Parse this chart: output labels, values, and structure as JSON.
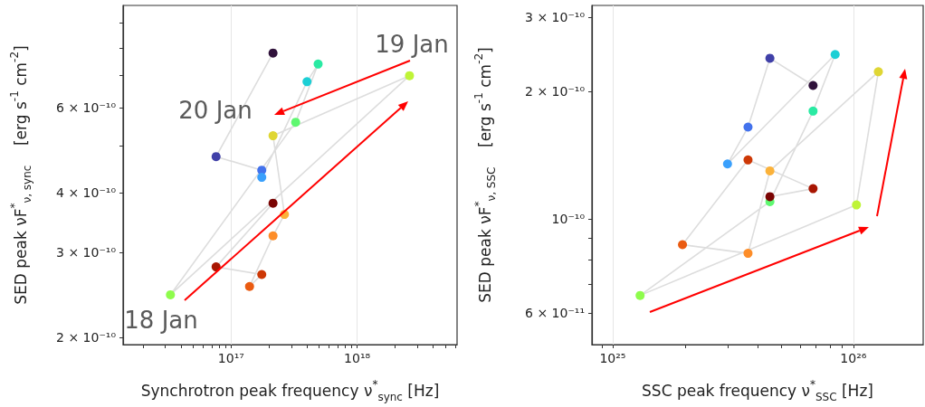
{
  "chart_data": [
    {
      "type": "line",
      "xlabel": "Synchrotron peak frequency ν$^{*}$$_{sync}$ [Hz]",
      "ylabel": "SED peak νF$^{*}$$_{ν, sync}$    [erg s$^{-1}$ cm$^{-2}$]",
      "log": "xy",
      "grid": "x",
      "marker": "circle",
      "line_style": "solid",
      "xlim": [
        1.39e+16,
        6.2e+18
      ],
      "ylim": [
        1.93e-10,
        9.8e-10
      ],
      "xticks": [
        {
          "value": 2e+16,
          "label": null
        },
        {
          "value": 3e+16,
          "label": null
        },
        {
          "value": 4e+16,
          "label": null
        },
        {
          "value": 5e+16,
          "label": null
        },
        {
          "value": 6e+16,
          "label": null
        },
        {
          "value": 7e+16,
          "label": null
        },
        {
          "value": 8e+16,
          "label": null
        },
        {
          "value": 9e+16,
          "label": null
        },
        {
          "value": 1e+17,
          "label": "10¹⁷"
        },
        {
          "value": 2e+17,
          "label": null
        },
        {
          "value": 3e+17,
          "label": null
        },
        {
          "value": 4e+17,
          "label": null
        },
        {
          "value": 5e+17,
          "label": null
        },
        {
          "value": 6e+17,
          "label": null
        },
        {
          "value": 7e+17,
          "label": null
        },
        {
          "value": 8e+17,
          "label": null
        },
        {
          "value": 9e+17,
          "label": null
        },
        {
          "value": 1e+18,
          "label": "10¹⁸"
        },
        {
          "value": 2e+18,
          "label": null
        },
        {
          "value": 3e+18,
          "label": null
        },
        {
          "value": 4e+18,
          "label": null
        },
        {
          "value": 5e+18,
          "label": null
        },
        {
          "value": 6e+18,
          "label": null
        }
      ],
      "yticks": [
        {
          "value": 2e-10,
          "label": "2 × 10⁻¹⁰"
        },
        {
          "value": 3e-10,
          "label": "3 × 10⁻¹⁰"
        },
        {
          "value": 4e-10,
          "label": "4 × 10⁻¹⁰"
        },
        {
          "value": 5e-10,
          "label": null
        },
        {
          "value": 6e-10,
          "label": "6 × 10⁻¹⁰"
        },
        {
          "value": 7e-10,
          "label": null
        },
        {
          "value": 8e-10,
          "label": null
        },
        {
          "value": 9e-10,
          "label": null
        }
      ],
      "x": [
        2.15e+17,
        7.6e+16,
        1.75e+17,
        1.75e+17,
        4e+17,
        4.9e+17,
        3.25e+17,
        3.3e+16,
        2.6e+18,
        2.15e+17,
        2.65e+17,
        2.15e+17,
        1.4e+17,
        1.75e+17,
        7.6e+16,
        2.15e+17
      ],
      "series": [
        {
          "color": "#dddddd",
          "values": [
            7.8e-10,
            4.75e-10,
            4.45e-10,
            4.3e-10,
            6.8e-10,
            7.4e-10,
            5.6e-10,
            2.45e-10,
            7e-10,
            5.25e-10,
            3.6e-10,
            3.25e-10,
            2.55e-10,
            2.7e-10,
            2.8e-10,
            3.8e-10
          ],
          "colors": [
            "#30123b",
            "#4040a8",
            "#4372ec",
            "#3aa0fc",
            "#1ccfd5",
            "#2aeaa3",
            "#5ef870",
            "#8efc4c",
            "#bff437",
            "#dfd634",
            "#fbb23a",
            "#fd8d28",
            "#ea5b11",
            "#cd3806",
            "#a81602",
            "#7a0403"
          ]
        }
      ],
      "annotations": [
        "18 Jan",
        "19 Jan",
        "20 Jan"
      ]
    },
    {
      "type": "line",
      "xlabel": "SSC peak frequency ν$^{*}$$_{SSC}$ [Hz]",
      "ylabel": "SED peak νF$^{*}$$_{ν, SSC}$    [erg s$^{-1}$ cm$^{-2}$]",
      "log": "xy",
      "grid": "x",
      "marker": "circle",
      "line_style": "solid",
      "xlim": [
        8.2e+24,
        1.95e+26
      ],
      "ylim": [
        5.05e-11,
        3.2e-10
      ],
      "xticks": [
        {
          "value": 9e+24,
          "label": null
        },
        {
          "value": 1e+25,
          "label": "10²⁵"
        },
        {
          "value": 2e+25,
          "label": null
        },
        {
          "value": 3e+25,
          "label": null
        },
        {
          "value": 4e+25,
          "label": null
        },
        {
          "value": 5e+25,
          "label": null
        },
        {
          "value": 6e+25,
          "label": null
        },
        {
          "value": 7e+25,
          "label": null
        },
        {
          "value": 8e+25,
          "label": null
        },
        {
          "value": 9e+25,
          "label": null
        },
        {
          "value": 1e+26,
          "label": "10²⁶"
        }
      ],
      "yticks": [
        {
          "value": 6e-11,
          "label": "6 × 10⁻¹¹"
        },
        {
          "value": 7e-11,
          "label": null
        },
        {
          "value": 8e-11,
          "label": null
        },
        {
          "value": 9e-11,
          "label": null
        },
        {
          "value": 1e-10,
          "label": "10⁻¹⁰"
        },
        {
          "value": 2e-10,
          "label": "2 × 10⁻¹⁰"
        },
        {
          "value": 3e-10,
          "label": "3 × 10⁻¹⁰"
        }
      ],
      "x": [
        6.8e+25,
        4.5e+25,
        3.65e+25,
        3e+25,
        8.4e+25,
        6.8e+25,
        4.5e+25,
        1.3e+25,
        1.03e+26,
        1.27e+26,
        4.5e+25,
        3.65e+25,
        1.95e+25,
        3.65e+25,
        6.8e+25,
        4.5e+25
      ],
      "series": [
        {
          "color": "#dddddd",
          "values": [
            2.07e-10,
            2.4e-10,
            1.65e-10,
            1.35e-10,
            2.45e-10,
            1.8e-10,
            1.1e-10,
            6.6e-11,
            1.08e-10,
            2.23e-10,
            1.3e-10,
            8.3e-11,
            8.7e-11,
            1.38e-10,
            1.18e-10,
            1.13e-10
          ],
          "colors": [
            "#30123b",
            "#4040a8",
            "#4372ec",
            "#3aa0fc",
            "#1ccfd5",
            "#2aeaa3",
            "#5ef870",
            "#8efc4c",
            "#bff437",
            "#dfd634",
            "#fbb23a",
            "#fd8d28",
            "#ea5b11",
            "#cd3806",
            "#a81602",
            "#7a0403"
          ]
        }
      ]
    }
  ]
}
